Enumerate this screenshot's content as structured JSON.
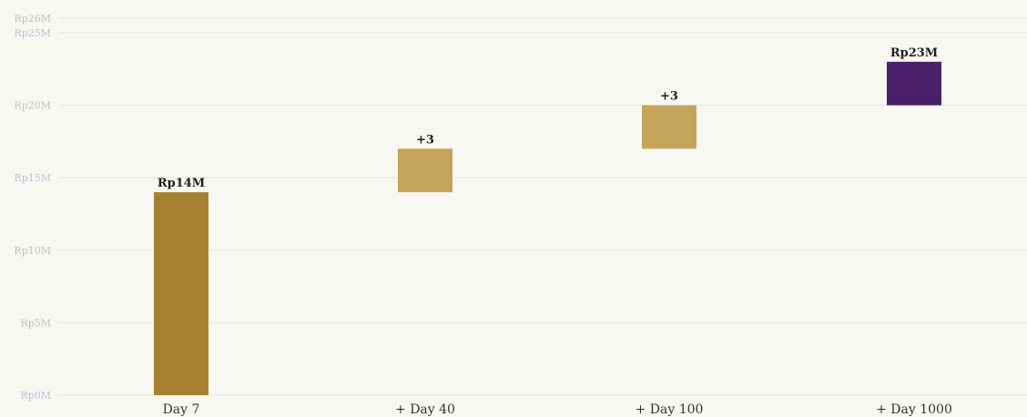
{
  "chart_data": {
    "type": "bar",
    "subtype": "waterfall",
    "title": "",
    "xlabel": "",
    "ylabel": "",
    "ylim": [
      0,
      26
    ],
    "grid": true,
    "y_unit": "Rp millions",
    "y_ticks": [
      {
        "value": 0,
        "label": "Rp0M"
      },
      {
        "value": 5,
        "label": "Rp5M"
      },
      {
        "value": 10,
        "label": "Rp10M"
      },
      {
        "value": 15,
        "label": "Rp15M"
      },
      {
        "value": 20,
        "label": "Rp20M"
      },
      {
        "value": 25,
        "label": "Rp25M"
      },
      {
        "value": 26,
        "label": "Rp26M"
      }
    ],
    "bars": [
      {
        "category": "Day 7",
        "base": 0,
        "value": 14,
        "label": "Rp14M",
        "color": "#a68132",
        "role": "total"
      },
      {
        "category": "+ Day 40",
        "base": 14,
        "value": 3,
        "label": "+3",
        "color": "#c4a35a",
        "role": "increase"
      },
      {
        "category": "+ Day 100",
        "base": 17,
        "value": 3,
        "label": "+3",
        "color": "#c4a35a",
        "role": "increase"
      },
      {
        "category": "+ Day 1000",
        "base": 20,
        "value": 3,
        "label": "Rp23M",
        "color": "#4a1f6a",
        "role": "total"
      }
    ]
  }
}
